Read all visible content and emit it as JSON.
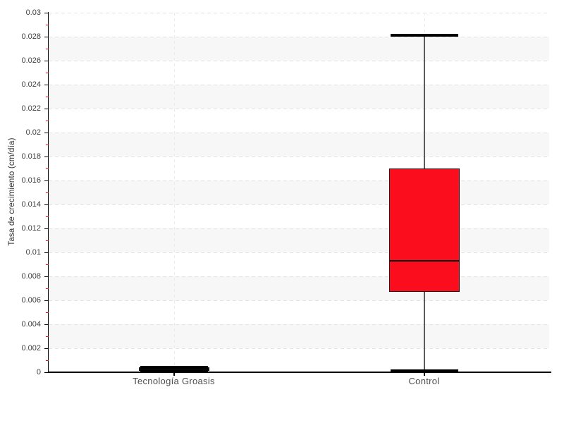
{
  "chart_data": {
    "type": "box",
    "title": "",
    "xlabel": "",
    "ylabel": "Tasa de crecimiento (cm/día)",
    "ylim": [
      0,
      0.03
    ],
    "ytick_step": 0.002,
    "ytick_labels": [
      "0",
      "0.002",
      "0.004",
      "0.006",
      "0.008",
      "0.01",
      "0.012",
      "0.014",
      "0.016",
      "0.018",
      "0.02",
      "0.022",
      "0.024",
      "0.026",
      "0.028",
      "0.03"
    ],
    "minor_tick_step": 0.001,
    "grid": "horizontal dashed gridlines every 0.002, alternating light stripe bands, vertical dashed line at each category center",
    "legend": "none",
    "categories": [
      "Tecnología Groasis",
      "Control"
    ],
    "series": [
      {
        "name": "Tecnología Groasis",
        "min": 0.0001,
        "q1": 0.0001,
        "median": 0.0002,
        "q3": 0.0004,
        "max": 0.0004,
        "fill_color": "#111111"
      },
      {
        "name": "Control",
        "min": 0.0001,
        "q1": 0.0067,
        "median": 0.0093,
        "q3": 0.017,
        "max": 0.0281,
        "fill_color": "#FB0D1D"
      }
    ]
  },
  "colors": {
    "background": "#FFFFFF",
    "stripe_band": "#F7F7F7",
    "h_gridline": "#E2E2E2",
    "v_gridline": "#EAEAEA",
    "axis": "#000000",
    "major_tick": "#000000",
    "minor_tick": "#EE0000",
    "tick_label": "#3D3D3D",
    "category_label": "#4D4D4D",
    "whisker": "#5A5A5A",
    "whisker_cap": "#000000",
    "box_border": "#1A1A1A",
    "median_line": "#000000"
  }
}
